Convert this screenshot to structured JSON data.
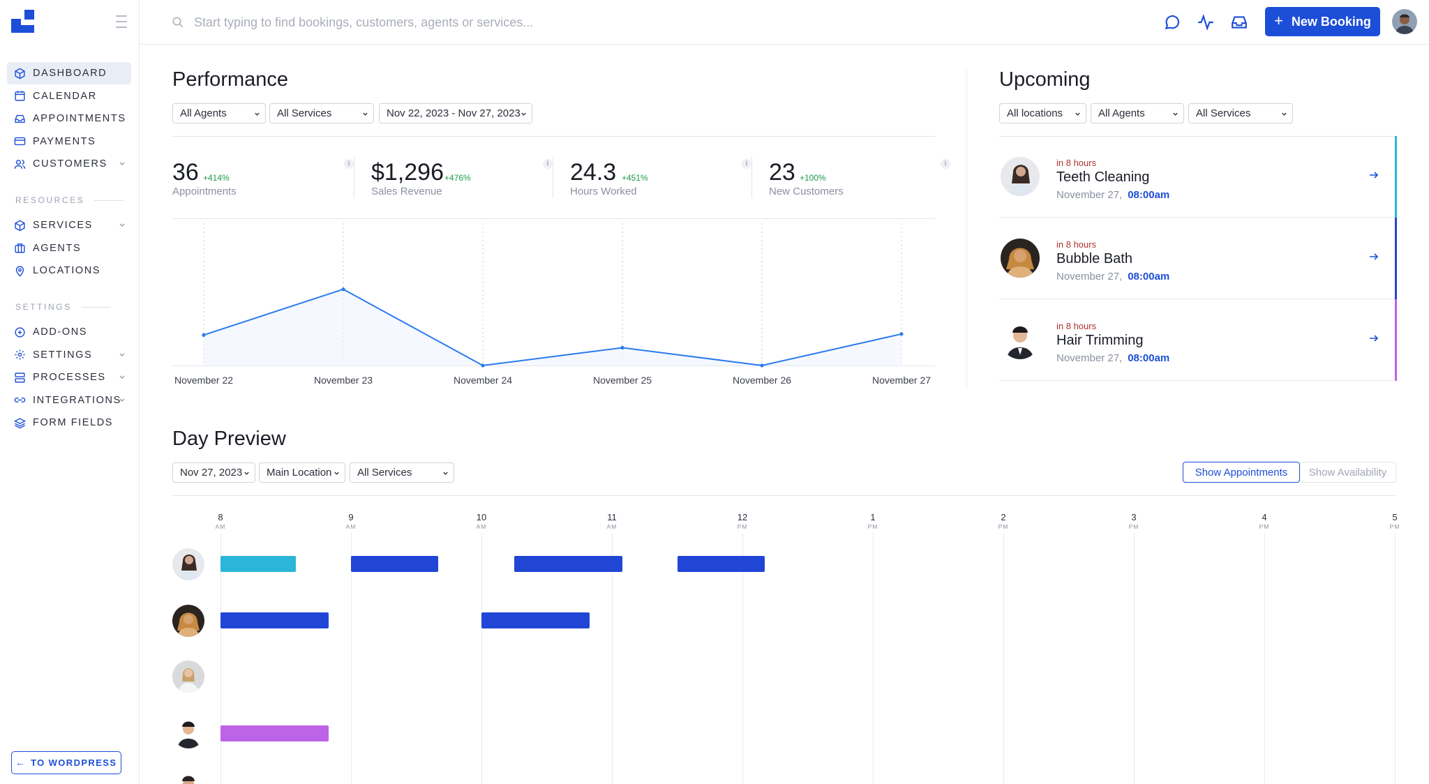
{
  "colors": {
    "accent": "#1d4ed8",
    "cyan": "#2bb5d8",
    "navy_bar": "#2744c8",
    "purple": "#bd63e8",
    "positive": "#1c9c4d",
    "due": "#b0322f",
    "chart_line": "#2a7af0"
  },
  "header": {
    "search_placeholder": "Start typing to find bookings, customers, agents or services...",
    "new_booking_label": "New Booking",
    "icons": [
      "chat-icon",
      "activity-icon",
      "inbox-icon"
    ]
  },
  "sidebar": {
    "items": [
      {
        "label": "DASHBOARD",
        "icon": "cube-icon",
        "active": true
      },
      {
        "label": "CALENDAR",
        "icon": "calendar-icon"
      },
      {
        "label": "APPOINTMENTS",
        "icon": "inbox-icon"
      },
      {
        "label": "PAYMENTS",
        "icon": "credit-card-icon"
      },
      {
        "label": "CUSTOMERS",
        "icon": "users-icon",
        "has_submenu": true
      }
    ],
    "resources_label": "RESOURCES",
    "resources": [
      {
        "label": "SERVICES",
        "icon": "cube-icon",
        "has_submenu": true
      },
      {
        "label": "AGENTS",
        "icon": "briefcase-icon"
      },
      {
        "label": "LOCATIONS",
        "icon": "map-pin-icon"
      }
    ],
    "settings_label": "SETTINGS",
    "settings": [
      {
        "label": "ADD-ONS",
        "icon": "plus-circle-icon"
      },
      {
        "label": "SETTINGS",
        "icon": "gear-icon",
        "has_submenu": true
      },
      {
        "label": "PROCESSES",
        "icon": "server-icon",
        "has_submenu": true
      },
      {
        "label": "INTEGRATIONS",
        "icon": "link-icon",
        "has_submenu": true
      },
      {
        "label": "FORM FIELDS",
        "icon": "layers-icon"
      }
    ],
    "to_wordpress": "TO WORDPRESS"
  },
  "performance": {
    "title": "Performance",
    "filters": {
      "agents": "All Agents",
      "services": "All Services",
      "date_range": "Nov 22, 2023 - Nov 27, 2023"
    },
    "stats": [
      {
        "value": "36",
        "change": "+414%",
        "label": "Appointments"
      },
      {
        "value": "$1,296",
        "change": "+476%",
        "label": "Sales Revenue"
      },
      {
        "value": "24.3",
        "change": "+451%",
        "label": "Hours Worked"
      },
      {
        "value": "23",
        "change": "+100%",
        "label": "New Customers"
      }
    ]
  },
  "chart_data": {
    "type": "line",
    "categories": [
      "November 22",
      "November 23",
      "November 24",
      "November 25",
      "November 26",
      "November 27"
    ],
    "values": [
      6,
      15,
      0,
      3.5,
      0,
      6.2
    ],
    "ylim": [
      0,
      28
    ],
    "grid": "vertical-dotted",
    "title": "",
    "xlabel": "",
    "ylabel": ""
  },
  "upcoming": {
    "title": "Upcoming",
    "filters": {
      "locations": "All locations",
      "agents": "All Agents",
      "services": "All Services"
    },
    "items": [
      {
        "due": "in 8 hours",
        "service": "Teeth Cleaning",
        "date": "November 27,",
        "time": "08:00am",
        "color": "#2bb5d8"
      },
      {
        "due": "in 8 hours",
        "service": "Bubble Bath",
        "date": "November 27,",
        "time": "08:00am",
        "color": "#2744c8"
      },
      {
        "due": "in 8 hours",
        "service": "Hair Trimming",
        "date": "November 27,",
        "time": "08:00am",
        "color": "#bd63e8"
      }
    ]
  },
  "day_preview": {
    "title": "Day Preview",
    "filters": {
      "date": "Nov 27, 2023",
      "location": "Main Location",
      "services": "All Services"
    },
    "show_appointments": "Show Appointments",
    "show_availability": "Show Availability",
    "hours": [
      {
        "num": "8",
        "ampm": "AM"
      },
      {
        "num": "9",
        "ampm": "AM"
      },
      {
        "num": "10",
        "ampm": "AM"
      },
      {
        "num": "11",
        "ampm": "AM"
      },
      {
        "num": "12",
        "ampm": "PM"
      },
      {
        "num": "1",
        "ampm": "PM"
      },
      {
        "num": "2",
        "ampm": "PM"
      },
      {
        "num": "3",
        "ampm": "PM"
      },
      {
        "num": "4",
        "ampm": "PM"
      },
      {
        "num": "5",
        "ampm": "PM"
      }
    ],
    "rows": [
      {
        "bookings": [
          {
            "start": 8.0,
            "end": 8.58,
            "color": "#2bb5d8"
          },
          {
            "start": 9.0,
            "end": 9.67,
            "color": "#2146d6"
          },
          {
            "start": 10.25,
            "end": 11.08,
            "color": "#2146d6"
          },
          {
            "start": 11.5,
            "end": 12.17,
            "color": "#2146d6"
          }
        ]
      },
      {
        "bookings": [
          {
            "start": 8.0,
            "end": 8.83,
            "color": "#2146d6"
          },
          {
            "start": 10.0,
            "end": 10.83,
            "color": "#2146d6"
          }
        ]
      },
      {
        "bookings": []
      },
      {
        "bookings": [
          {
            "start": 8.0,
            "end": 8.83,
            "color": "#bd63e8"
          }
        ]
      },
      {
        "bookings": []
      }
    ]
  }
}
